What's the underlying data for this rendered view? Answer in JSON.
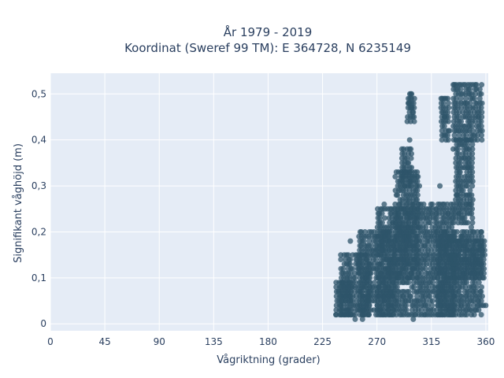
{
  "chart_data": {
    "type": "scatter",
    "title": [
      "År 1979 - 2019",
      "Koordinat (Sweref 99 TM): E 364728, N 6235149"
    ],
    "xlabel": "Vågriktning (grader)",
    "ylabel": "Signifikant våghöjd (m)",
    "xlim": [
      0,
      362
    ],
    "ylim": [
      -0.015,
      0.545
    ],
    "x_ticks": [
      0,
      45,
      90,
      135,
      180,
      225,
      270,
      315,
      360
    ],
    "x_tick_labels": [
      "0",
      "45",
      "90",
      "135",
      "180",
      "225",
      "270",
      "315",
      "360"
    ],
    "y_ticks": [
      0,
      0.1,
      0.2,
      0.3,
      0.4,
      0.5
    ],
    "y_tick_labels": [
      "0",
      "0,1",
      "0,2",
      "0,3",
      "0,4",
      "0,5"
    ],
    "grid": true,
    "series": [
      {
        "color": "#2e5469",
        "opacity": 0.75,
        "clusters": [
          {
            "x": [
              236,
              250
            ],
            "y": [
              0.02,
              0.09
            ]
          },
          {
            "x": [
              240,
              265
            ],
            "y": [
              0.02,
              0.15
            ]
          },
          {
            "x": [
              255,
              285
            ],
            "y": [
              0.02,
              0.2
            ]
          },
          {
            "x": [
              270,
              300
            ],
            "y": [
              0.02,
              0.25
            ]
          },
          {
            "x": [
              285,
              305
            ],
            "y": [
              0.1,
              0.33
            ]
          },
          {
            "x": [
              290,
              300
            ],
            "y": [
              0.3,
              0.38
            ]
          },
          {
            "x": [
              295,
              302
            ],
            "y": [
              0.44,
              0.5
            ]
          },
          {
            "x": [
              300,
              335
            ],
            "y": [
              0.02,
              0.26
            ]
          },
          {
            "x": [
              320,
              358
            ],
            "y": [
              0.02,
              0.2
            ]
          },
          {
            "x": [
              330,
              360
            ],
            "y": [
              0.1,
              0.18
            ]
          },
          {
            "x": [
              323,
              330
            ],
            "y": [
              0.4,
              0.49
            ]
          },
          {
            "x": [
              333,
              358
            ],
            "y": [
              0.4,
              0.52
            ]
          },
          {
            "x": [
              335,
              350
            ],
            "y": [
              0.22,
              0.4
            ]
          }
        ],
        "points": [
          [
            236,
            0.02
          ],
          [
            238,
            0.07
          ],
          [
            242,
            0.11
          ],
          [
            245,
            0.13
          ],
          [
            248,
            0.18
          ],
          [
            252,
            0.01
          ],
          [
            258,
            0.01
          ],
          [
            262,
            0.05
          ],
          [
            276,
            0.26
          ],
          [
            283,
            0.22
          ],
          [
            300,
            0.01
          ],
          [
            296,
            0.37
          ],
          [
            297,
            0.4
          ],
          [
            295,
            0.44
          ],
          [
            296,
            0.48
          ],
          [
            298,
            0.5
          ],
          [
            299,
            0.47
          ],
          [
            300,
            0.46
          ],
          [
            303,
            0.32
          ],
          [
            305,
            0.3
          ],
          [
            322,
            0.3
          ],
          [
            324,
            0.49
          ],
          [
            326,
            0.45
          ],
          [
            330,
            0.42
          ],
          [
            334,
            0.52
          ],
          [
            333,
            0.38
          ],
          [
            336,
            0.28
          ],
          [
            338,
            0.24
          ],
          [
            340,
            0.19
          ],
          [
            345,
            0.34
          ],
          [
            346,
            0.26
          ],
          [
            348,
            0.21
          ],
          [
            352,
            0.07
          ],
          [
            355,
            0.1
          ],
          [
            358,
            0.04
          ],
          [
            360,
            0.04
          ],
          [
            359,
            0.15
          ],
          [
            356,
            0.2
          ]
        ]
      }
    ]
  }
}
